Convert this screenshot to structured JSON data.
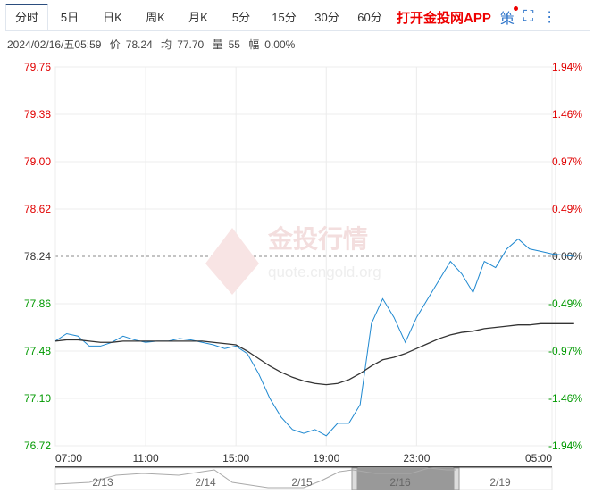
{
  "tabs": [
    "分时",
    "5日",
    "日K",
    "周K",
    "月K",
    "5分",
    "15分",
    "30分",
    "60分"
  ],
  "app_link": "打开金投网APP",
  "strategy_icon_label": "策",
  "info": {
    "datetime": "2024/02/16/五05:59",
    "price_label": "价",
    "price": "78.24",
    "avg_label": "均",
    "avg": "77.70",
    "vol_label": "量",
    "vol": "55",
    "change_label": "幅",
    "change": "0.00%"
  },
  "watermark": {
    "name": "金投行情",
    "url": "quote.cngold.org"
  },
  "colors": {
    "up": "#e00000",
    "down": "#009900",
    "price_line": "#1e88d0",
    "avg_line": "#333333"
  },
  "chart_data": {
    "type": "line",
    "ylim": [
      76.72,
      79.76
    ],
    "prev_close": 78.24,
    "y_ticks": [
      "79.76",
      "79.38",
      "79.00",
      "78.62",
      "78.24",
      "77.86",
      "77.48",
      "77.10",
      "76.72"
    ],
    "pct_ticks": [
      "1.94%",
      "1.46%",
      "0.97%",
      "0.49%",
      "0.00%",
      "-0.49%",
      "-0.97%",
      "-1.46%",
      "-1.94%"
    ],
    "x_ticks": [
      "07:00",
      "11:00",
      "15:00",
      "19:00",
      "23:00",
      "05:00"
    ],
    "x_hours_from_start": [
      0,
      0.5,
      1,
      1.5,
      2,
      2.5,
      3,
      3.5,
      4,
      4.5,
      5,
      5.5,
      6,
      6.5,
      7,
      7.5,
      8,
      8.5,
      9,
      9.5,
      10,
      10.5,
      11,
      11.5,
      12,
      12.5,
      13,
      13.5,
      14,
      14.5,
      15,
      15.5,
      16,
      16.5,
      17,
      17.5,
      18,
      18.5,
      19,
      19.5,
      20,
      20.5,
      21,
      21.5,
      22,
      22.98
    ],
    "series": [
      {
        "name": "价",
        "values": [
          77.56,
          77.62,
          77.6,
          77.52,
          77.52,
          77.55,
          77.6,
          77.57,
          77.55,
          77.56,
          77.56,
          77.58,
          77.57,
          77.55,
          77.53,
          77.5,
          77.52,
          77.46,
          77.3,
          77.1,
          76.95,
          76.85,
          76.82,
          76.85,
          76.8,
          76.9,
          76.9,
          77.05,
          77.7,
          77.9,
          77.75,
          77.55,
          77.75,
          77.9,
          78.05,
          78.2,
          78.1,
          77.95,
          78.2,
          78.15,
          78.3,
          78.38,
          78.3,
          78.28,
          78.26,
          78.24
        ]
      },
      {
        "name": "均",
        "values": [
          77.56,
          77.57,
          77.57,
          77.56,
          77.55,
          77.55,
          77.56,
          77.56,
          77.56,
          77.56,
          77.56,
          77.56,
          77.56,
          77.56,
          77.55,
          77.54,
          77.53,
          77.48,
          77.42,
          77.36,
          77.31,
          77.27,
          77.24,
          77.22,
          77.21,
          77.22,
          77.25,
          77.3,
          77.36,
          77.41,
          77.43,
          77.46,
          77.5,
          77.54,
          77.58,
          77.61,
          77.63,
          77.64,
          77.66,
          77.67,
          77.68,
          77.69,
          77.69,
          77.7,
          77.7,
          77.7
        ]
      }
    ]
  },
  "navigator": {
    "dates": [
      "2/13",
      "2/14",
      "2/15",
      "2/16",
      "2/19"
    ]
  }
}
